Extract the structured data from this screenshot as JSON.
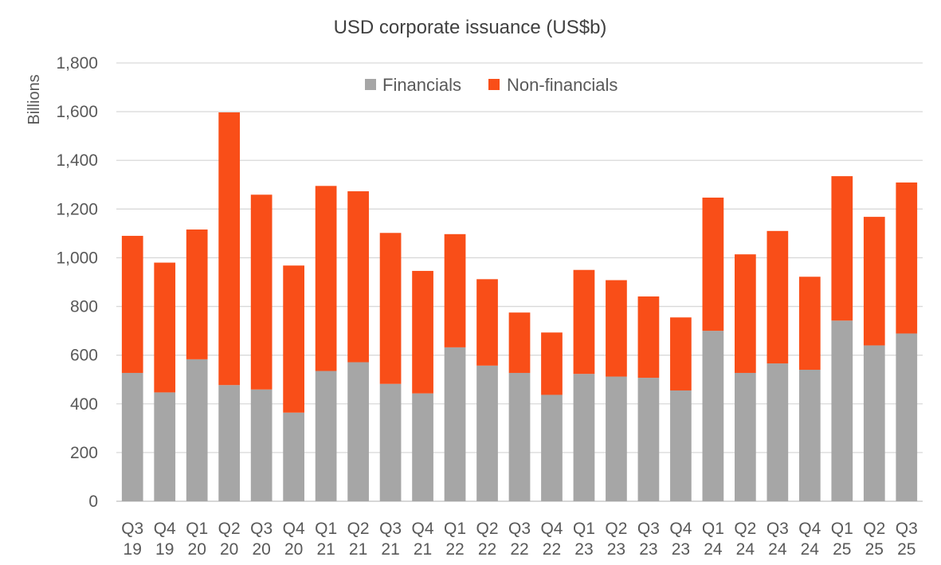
{
  "chart_data": {
    "type": "bar",
    "stacked": true,
    "title": "USD corporate issuance (US$b)",
    "xlabel": "",
    "ylabel": "Billions",
    "ylim": [
      0,
      1800
    ],
    "yticks": [
      0,
      200,
      400,
      600,
      800,
      1000,
      1200,
      1400,
      1600,
      1800
    ],
    "ytick_labels": [
      "0",
      "200",
      "400",
      "600",
      "800",
      "1,000",
      "1,200",
      "1,400",
      "1,600",
      "1,800"
    ],
    "grid": true,
    "legend_position": "top-center",
    "categories": [
      [
        "Q3",
        "19"
      ],
      [
        "Q4",
        "19"
      ],
      [
        "Q1",
        "20"
      ],
      [
        "Q2",
        "20"
      ],
      [
        "Q3",
        "20"
      ],
      [
        "Q4",
        "20"
      ],
      [
        "Q1",
        "21"
      ],
      [
        "Q2",
        "21"
      ],
      [
        "Q3",
        "21"
      ],
      [
        "Q4",
        "21"
      ],
      [
        "Q1",
        "22"
      ],
      [
        "Q2",
        "22"
      ],
      [
        "Q3",
        "22"
      ],
      [
        "Q4",
        "22"
      ],
      [
        "Q1",
        "23"
      ],
      [
        "Q2",
        "23"
      ],
      [
        "Q3",
        "23"
      ],
      [
        "Q4",
        "23"
      ],
      [
        "Q1",
        "24"
      ],
      [
        "Q2",
        "24"
      ],
      [
        "Q3",
        "24"
      ],
      [
        "Q4",
        "24"
      ],
      [
        "Q1",
        "25"
      ],
      [
        "Q2",
        "25"
      ],
      [
        "Q3",
        "25"
      ]
    ],
    "series": [
      {
        "name": "Financials",
        "color": "#a6a6a6",
        "values": [
          527,
          447,
          583,
          477,
          459,
          364,
          535,
          571,
          482,
          443,
          632,
          557,
          527,
          437,
          523,
          512,
          507,
          455,
          700,
          527,
          566,
          540,
          742,
          640,
          689
        ]
      },
      {
        "name": "Non-financials",
        "color": "#f94e18",
        "values": [
          563,
          533,
          533,
          1120,
          800,
          604,
          760,
          702,
          620,
          503,
          465,
          355,
          248,
          256,
          427,
          396,
          334,
          300,
          547,
          487,
          544,
          382,
          593,
          528,
          620
        ]
      }
    ]
  }
}
